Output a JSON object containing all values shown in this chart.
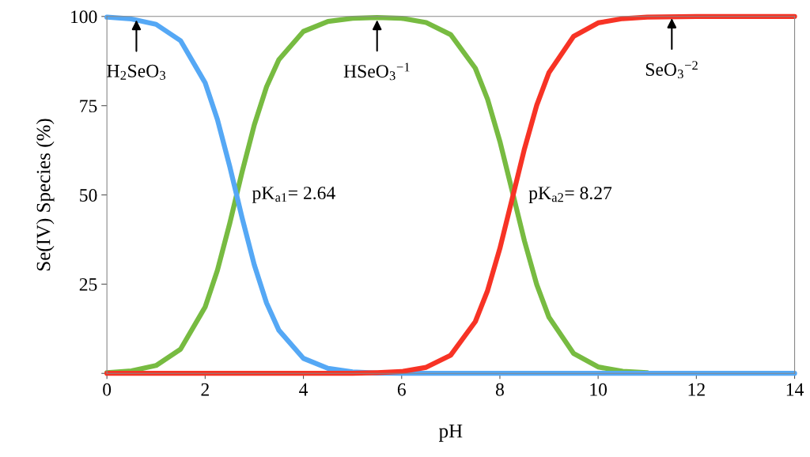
{
  "chart_data": {
    "type": "line",
    "xlabel": "pH",
    "ylabel": "Se(IV) Species (%)",
    "x": [
      0,
      0.5,
      1,
      1.5,
      2,
      2.25,
      2.5,
      2.64,
      2.75,
      3,
      3.25,
      3.5,
      4,
      4.5,
      5,
      5.5,
      6,
      6.5,
      7,
      7.5,
      7.75,
      8,
      8.27,
      8.5,
      8.75,
      9,
      9.5,
      10,
      10.5,
      11,
      12,
      13,
      14
    ],
    "series": [
      {
        "color": "#77bb41",
        "values": [
          0.2,
          0.7,
          2.2,
          6.8,
          18.6,
          28.9,
          42.0,
          50,
          56.3,
          69.6,
          80.3,
          87.9,
          95.8,
          98.6,
          99.5,
          99.7,
          99.5,
          98.3,
          94.9,
          85.5,
          76.8,
          65.0,
          50,
          37.1,
          24.9,
          15.7,
          5.6,
          1.8,
          0.6,
          0.2,
          null,
          null,
          null
        ]
      },
      {
        "color": "#55a8f5",
        "values": [
          99.8,
          99.3,
          97.8,
          93.2,
          81.4,
          71.1,
          58.0,
          50,
          43.7,
          30.4,
          19.7,
          12.1,
          4.2,
          1.4,
          0.4,
          0.1,
          0,
          0,
          0,
          0,
          0,
          0,
          0,
          0,
          0,
          0,
          0,
          0,
          0,
          0,
          0,
          0,
          0
        ]
      },
      {
        "color": "#f73325",
        "values": [
          0,
          0,
          0,
          0,
          0,
          0,
          0,
          0,
          0,
          0,
          0,
          0,
          0,
          0,
          0,
          0.2,
          0.5,
          1.7,
          5.1,
          14.5,
          23.2,
          35.0,
          50,
          62.9,
          75.1,
          84.3,
          94.4,
          98.2,
          99.4,
          99.8,
          100,
          100,
          100
        ]
      }
    ],
    "xlim": [
      0,
      14
    ],
    "xticks": [
      0,
      2,
      4,
      6,
      8,
      10,
      12,
      14
    ],
    "ylim": [
      0,
      100
    ],
    "yticks": [
      {
        "value": 0,
        "label": null
      },
      25,
      50,
      75,
      100
    ],
    "grid": false,
    "legend": false,
    "marker": "none",
    "line_style": "solid",
    "annotations": [
      {
        "text": "H$_{2}$SeO$_{3}$",
        "x": 0.6,
        "y": 99
      },
      {
        "text": "HSeO$_{3}$$^{−1}$",
        "x": 5.5,
        "y": 99
      },
      {
        "text": "SeO$_{3}$$^{−2}$",
        "x": 11.5,
        "y": 99.5
      },
      {
        "text": "pK$_{a1}$= 2.64",
        "x": 2.64,
        "y": 50
      },
      {
        "text": "pK$_{a2}$= 8.27",
        "x": 8.27,
        "y": 50
      }
    ]
  }
}
